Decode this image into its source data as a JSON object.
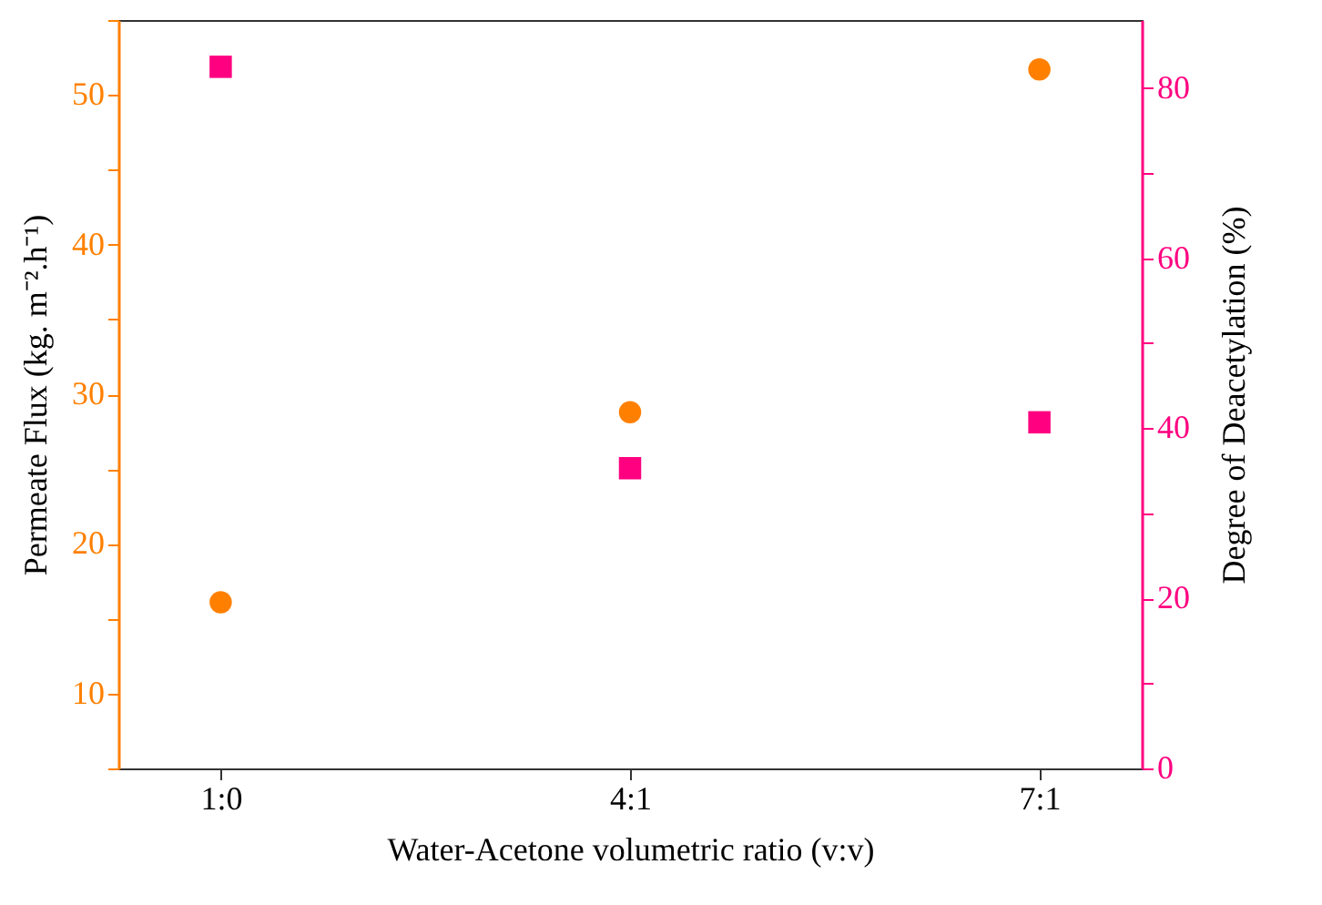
{
  "chart_data": {
    "type": "scatter",
    "xlabel": "Water-Acetone volumetric ratio (v:v)",
    "ylabel": "Permeate Flux (kg. m⁻².h⁻¹)",
    "y2label": "Degree of Deacetylation (%)",
    "categories": [
      "1:0",
      "4:1",
      "7:1"
    ],
    "series": [
      {
        "color": "#ff8000",
        "marker": "circle",
        "axis": "y",
        "values": [
          16.1,
          28.8,
          51.7
        ]
      },
      {
        "color": "#ff0080",
        "marker": "square",
        "axis": "y2",
        "values": [
          82.5,
          35.3,
          40.7
        ]
      }
    ],
    "ylim": [
      5,
      55
    ],
    "yticks": [
      {
        "value": 5,
        "label": null
      },
      10,
      {
        "value": 15,
        "label": null
      },
      20,
      {
        "value": 25,
        "label": null
      },
      30,
      {
        "value": 35,
        "label": null
      },
      40,
      {
        "value": 45,
        "label": null
      },
      50,
      {
        "value": 55,
        "label": null
      }
    ],
    "y2lim": [
      0,
      88
    ],
    "y2ticks": [
      0,
      {
        "value": 10,
        "label": null
      },
      20,
      {
        "value": 30,
        "label": null
      },
      40,
      {
        "value": 50,
        "label": null
      },
      60,
      {
        "value": 70,
        "label": null
      },
      80
    ],
    "grid": false
  }
}
